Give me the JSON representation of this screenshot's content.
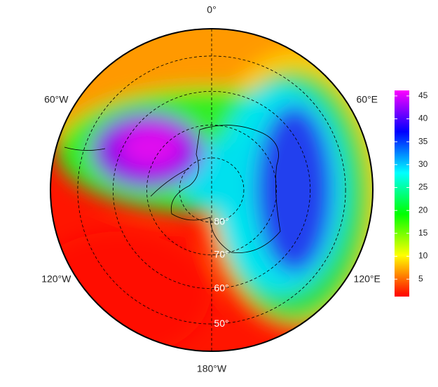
{
  "map": {
    "lon_labels": [
      {
        "value": 0,
        "label": "0°"
      },
      {
        "value": 60,
        "label": "60°E"
      },
      {
        "value": 120,
        "label": "120°E"
      },
      {
        "value": 180,
        "label": "180°W"
      },
      {
        "value": -120,
        "label": "120°W"
      },
      {
        "value": -60,
        "label": "60°W"
      }
    ],
    "lat_labels": [
      {
        "value": 50,
        "label": "50°"
      },
      {
        "value": 60,
        "label": "60°"
      },
      {
        "value": 70,
        "label": "70°"
      },
      {
        "value": 80,
        "label": "80°"
      }
    ],
    "colorbar": {
      "range": [
        1.2,
        46.2
      ],
      "ticks": [
        5,
        10,
        15,
        20,
        25,
        30,
        35,
        40,
        45
      ],
      "colors": [
        "#ff0000",
        "#ffff00",
        "#00ff00",
        "#00ffff",
        "#0000ff",
        "#ff00ff"
      ]
    }
  }
}
